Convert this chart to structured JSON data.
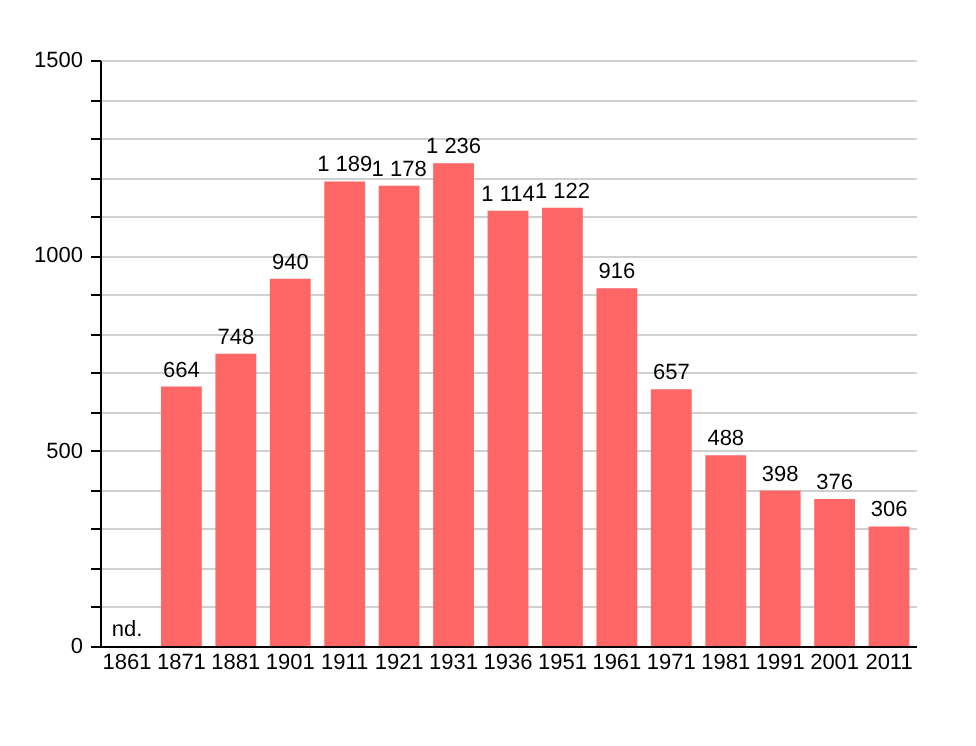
{
  "chart_data": {
    "type": "bar",
    "categories": [
      "1861",
      "1871",
      "1881",
      "1901",
      "1911",
      "1921",
      "1931",
      "1936",
      "1951",
      "1961",
      "1971",
      "1981",
      "1991",
      "2001",
      "2011"
    ],
    "values": [
      null,
      664,
      748,
      940,
      1189,
      1178,
      1236,
      1114,
      1122,
      916,
      657,
      488,
      398,
      376,
      306
    ],
    "value_labels": [
      "nd.",
      "664",
      "748",
      "940",
      "1 189",
      "1 178",
      "1 236",
      "1 114",
      "1 122",
      "916",
      "657",
      "488",
      "398",
      "376",
      "306"
    ],
    "color": "#ff6666",
    "ylim": [
      0,
      1500
    ],
    "yticks": [
      0,
      {
        "value": 100,
        "label": null
      },
      {
        "value": 200,
        "label": null
      },
      {
        "value": 300,
        "label": null
      },
      {
        "value": 400,
        "label": null
      },
      500,
      {
        "value": 600,
        "label": null
      },
      {
        "value": 700,
        "label": null
      },
      {
        "value": 800,
        "label": null
      },
      {
        "value": 900,
        "label": null
      },
      1000,
      {
        "value": 1100,
        "label": null
      },
      {
        "value": 1200,
        "label": null
      },
      {
        "value": 1300,
        "label": null
      },
      {
        "value": 1400,
        "label": null
      },
      1500
    ],
    "grid": "y"
  }
}
